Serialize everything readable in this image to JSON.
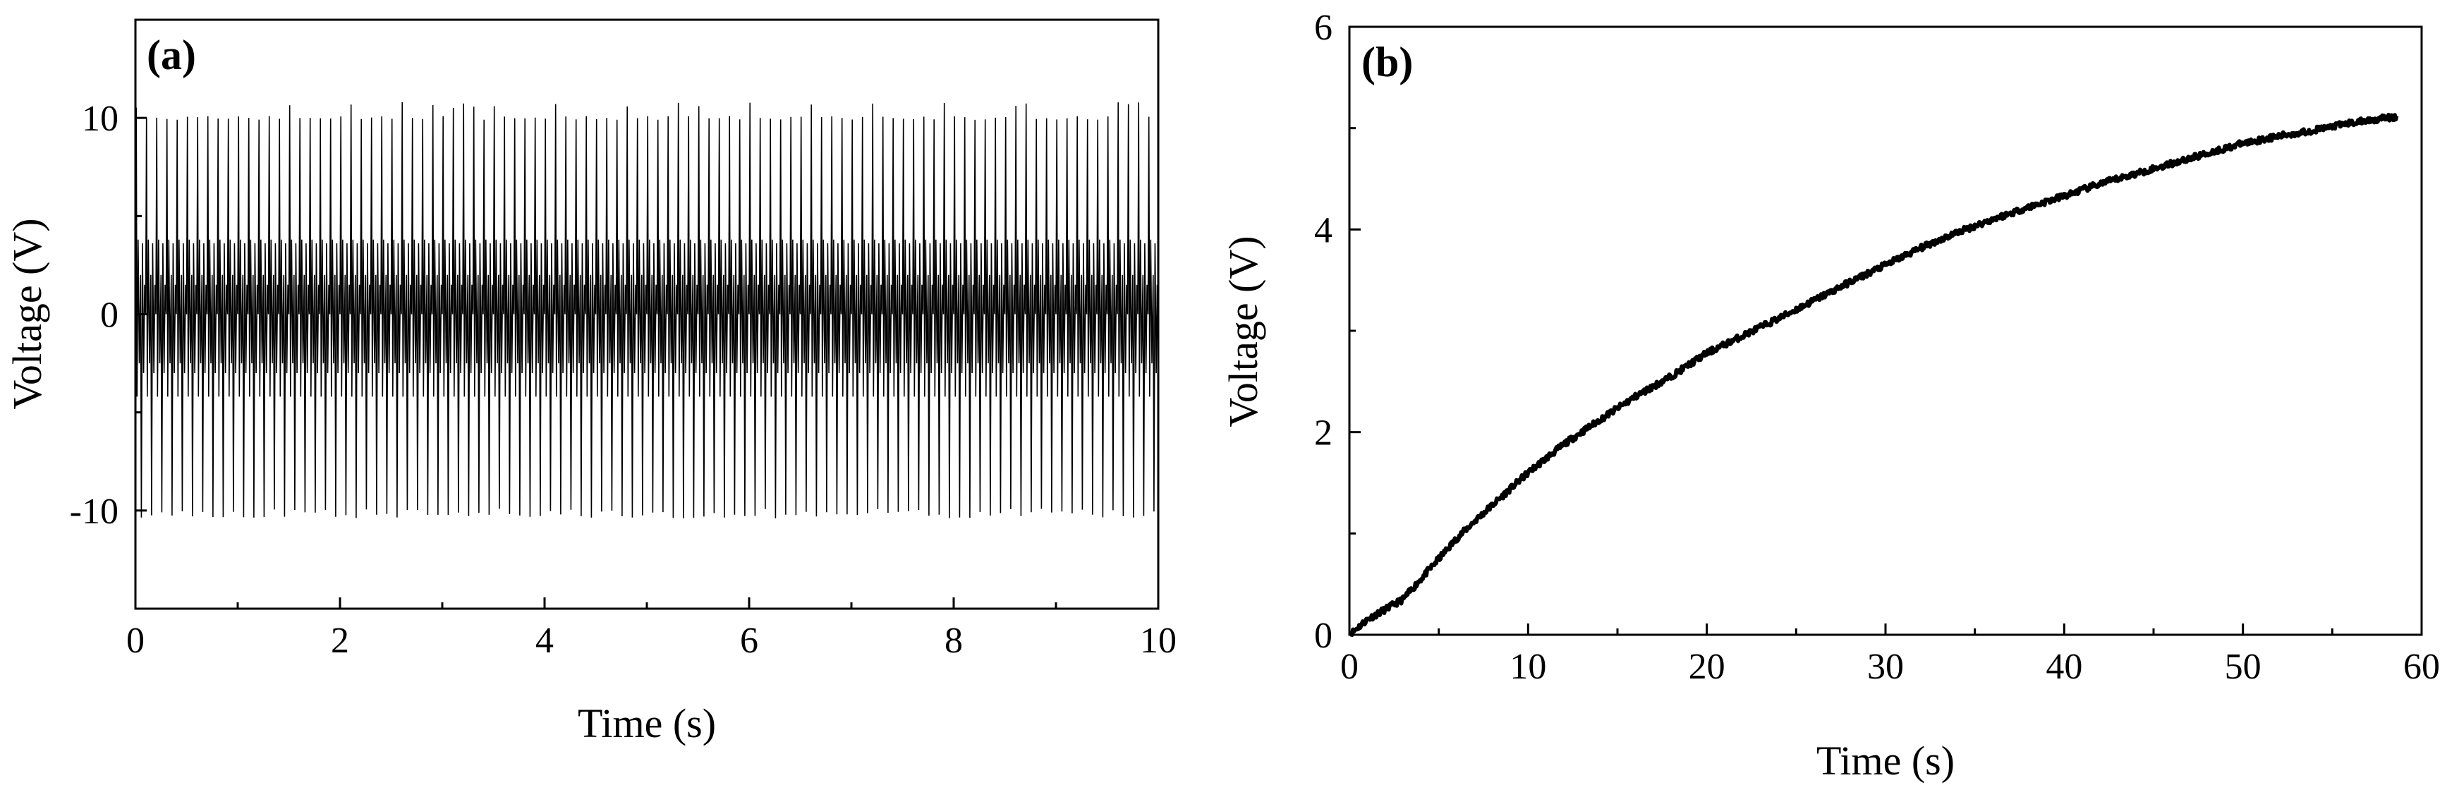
{
  "chart_data": [
    {
      "panel_label": "(a)",
      "type": "line",
      "xlabel": "Time (s)",
      "ylabel": "Voltage (V)",
      "xlim": [
        0,
        10
      ],
      "ylim": [
        -15,
        15
      ],
      "xticks": [
        0,
        2,
        4,
        6,
        8,
        10
      ],
      "yticks": [
        -10,
        0,
        10
      ],
      "xtick_labels": [
        "0",
        "2",
        "4",
        "6",
        "8",
        "10"
      ],
      "ytick_labels": [
        "-10",
        "0",
        "10"
      ],
      "signal": {
        "description_type": "periodic pulse train",
        "pulse_count": 100,
        "duration": 10,
        "peak_max": 10.8,
        "peak_typical": 10.0,
        "trough_min": -10.4,
        "trough_typical": -9.9,
        "secondary_high": 3.8,
        "secondary_low": -4.2,
        "baseline": 0
      },
      "line_color": "#000000",
      "grid": false
    },
    {
      "panel_label": "(b)",
      "type": "line",
      "xlabel": "Time (s)",
      "ylabel": "Voltage (V)",
      "xlim": [
        0,
        60
      ],
      "ylim": [
        0,
        6
      ],
      "xticks": [
        0,
        10,
        20,
        30,
        40,
        50,
        60
      ],
      "yticks": [
        0,
        2,
        4,
        6
      ],
      "xtick_labels": [
        "0",
        "10",
        "20",
        "30",
        "40",
        "50",
        "60"
      ],
      "ytick_labels": [
        "0",
        "2",
        "4",
        "6"
      ],
      "x": [
        0,
        1,
        2,
        3,
        4,
        5,
        6,
        7,
        8,
        10,
        12,
        14,
        16,
        18,
        20,
        22,
        24,
        26,
        28,
        30,
        32,
        34,
        36,
        38,
        40,
        42,
        44,
        46,
        48,
        50,
        52,
        54,
        56,
        58,
        60
      ],
      "y": [
        0.0,
        0.15,
        0.25,
        0.35,
        0.55,
        0.75,
        0.95,
        1.12,
        1.28,
        1.6,
        1.88,
        2.12,
        2.35,
        2.55,
        2.78,
        2.95,
        3.12,
        3.3,
        3.48,
        3.65,
        3.82,
        3.97,
        4.1,
        4.22,
        4.33,
        4.45,
        4.55,
        4.65,
        4.75,
        4.85,
        4.92,
        4.98,
        5.05,
        5.1,
        5.12
      ],
      "line_color": "#000000",
      "grid": false
    }
  ]
}
